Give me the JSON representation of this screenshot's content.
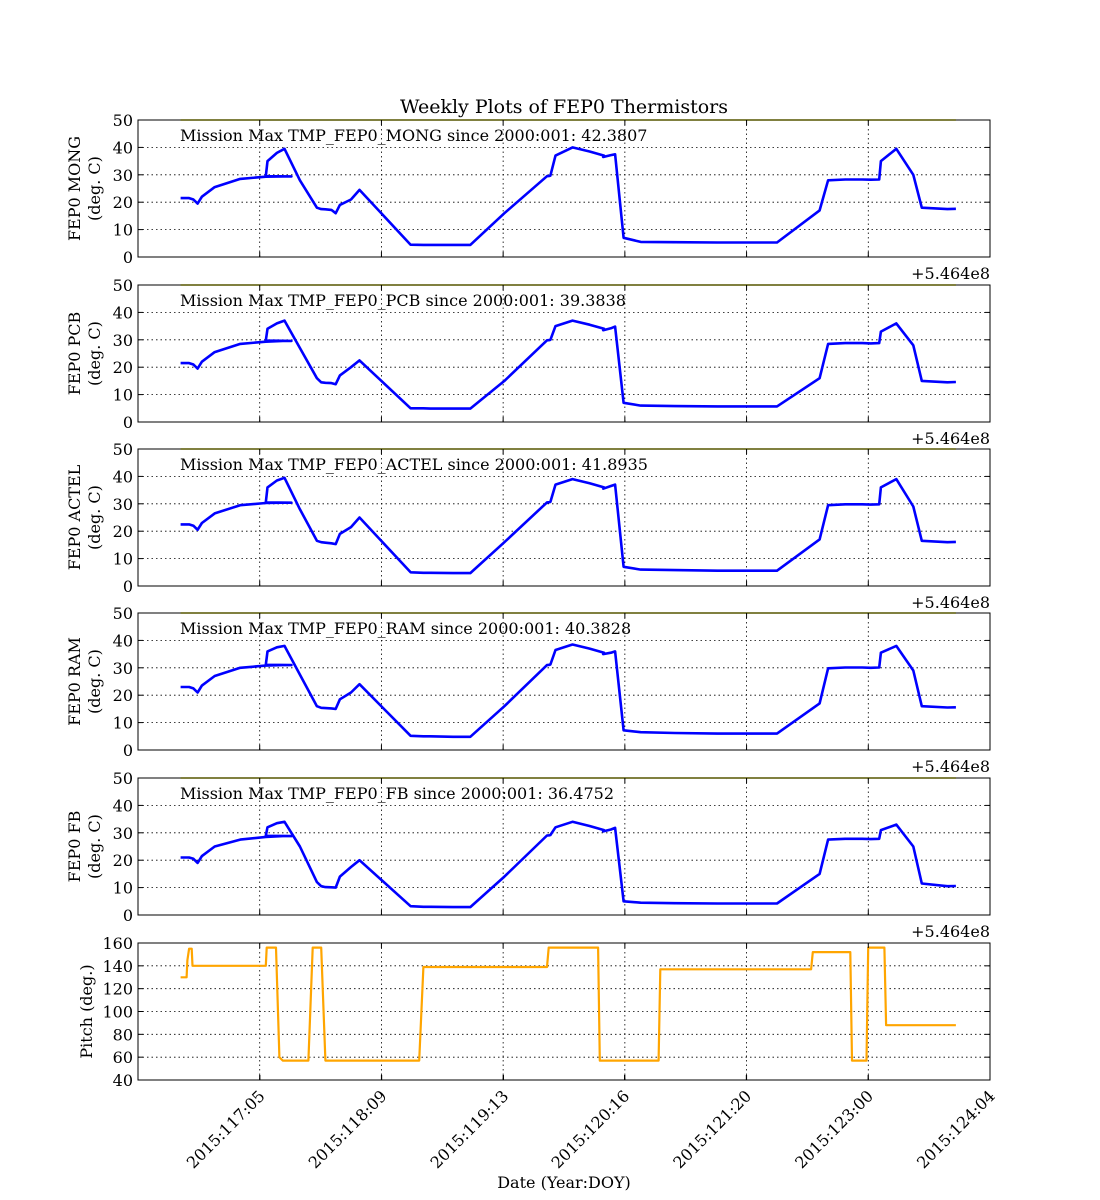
{
  "figure": {
    "title": "Weekly Plots of FEP0 Thermistors",
    "xlabel": "Date (Year:DOY)",
    "offset_label": "+5.464e8",
    "colors": {
      "thermistor": "#0000ff",
      "pitch": "#ffa500",
      "limit": "#ffff00",
      "grid": "#000000"
    }
  },
  "chart_data": [
    {
      "type": "line",
      "ylabel": [
        "FEP0 MONG",
        "(deg. C)"
      ],
      "annotation": "Mission Max TMP_FEP0_MONG since 2000:001: 42.3807",
      "ylim": [
        0,
        50
      ],
      "yticks": [
        0,
        10,
        20,
        30,
        40,
        50
      ],
      "xlim": [
        0,
        1.0
      ],
      "offset_label": "+5.464e8",
      "limit_line": 50,
      "series": [
        {
          "x": [
            0.05,
            0.06,
            0.065,
            0.07,
            0.075,
            0.09,
            0.12,
            0.15,
            0.17,
            0.18,
            0.15,
            0.152,
            0.163,
            0.172,
            0.19,
            0.21,
            0.215,
            0.22,
            0.227,
            0.232,
            0.237,
            0.25,
            0.26,
            0.32,
            0.335,
            0.343,
            0.37,
            0.39,
            0.43,
            0.48,
            0.483,
            0.484,
            0.49,
            0.51,
            0.53,
            0.547,
            0.546,
            0.555,
            0.56,
            0.57,
            0.59,
            0.63,
            0.68,
            0.75,
            0.8,
            0.81,
            0.83,
            0.85,
            0.86,
            0.87,
            0.872,
            0.89,
            0.91,
            0.92,
            0.95,
            0.96
          ],
          "y": [
            21.5,
            21.5,
            21,
            19.5,
            22,
            25.5,
            28.5,
            29.3,
            29.4,
            29.4,
            29.5,
            35,
            38,
            39.5,
            28,
            18,
            17.5,
            17.4,
            17.2,
            16,
            19,
            21,
            24.5,
            4.5,
            4.4,
            4.4,
            4.4,
            4.4,
            16,
            29.5,
            29.6,
            29.7,
            37,
            40,
            38.5,
            37,
            36.5,
            37.2,
            37.5,
            7,
            5.5,
            5.4,
            5.3,
            5.3,
            17,
            28,
            28.3,
            28.3,
            28.2,
            28.3,
            35,
            39.5,
            30,
            18,
            17.5,
            17.6
          ]
        }
      ]
    },
    {
      "type": "line",
      "ylabel": [
        "FEP0 PCB",
        "(deg. C)"
      ],
      "annotation": "Mission Max TMP_FEP0_PCB since 2000:001: 39.3838",
      "ylim": [
        0,
        50
      ],
      "yticks": [
        0,
        10,
        20,
        30,
        40,
        50
      ],
      "xlim": [
        0,
        1.0
      ],
      "offset_label": "+5.464e8",
      "limit_line": 50,
      "series": [
        {
          "x": [
            0.05,
            0.06,
            0.065,
            0.07,
            0.075,
            0.09,
            0.12,
            0.15,
            0.17,
            0.18,
            0.15,
            0.152,
            0.163,
            0.172,
            0.19,
            0.21,
            0.215,
            0.22,
            0.227,
            0.232,
            0.237,
            0.25,
            0.26,
            0.32,
            0.335,
            0.343,
            0.37,
            0.39,
            0.43,
            0.48,
            0.483,
            0.484,
            0.49,
            0.51,
            0.53,
            0.547,
            0.546,
            0.555,
            0.56,
            0.57,
            0.59,
            0.63,
            0.68,
            0.75,
            0.8,
            0.81,
            0.83,
            0.85,
            0.86,
            0.87,
            0.872,
            0.89,
            0.91,
            0.92,
            0.95,
            0.96
          ],
          "y": [
            21.5,
            21.5,
            21,
            19.5,
            22,
            25.5,
            28.5,
            29.3,
            29.6,
            29.6,
            29.7,
            34,
            36,
            37,
            27,
            16,
            14.5,
            14.3,
            14.2,
            13.8,
            17,
            20,
            22.5,
            5,
            5,
            4.9,
            4.9,
            4.9,
            15,
            29.8,
            29.9,
            30,
            35,
            37,
            35.5,
            34,
            33.5,
            34.2,
            34.8,
            7,
            6,
            5.8,
            5.7,
            5.7,
            16,
            28.5,
            28.8,
            28.8,
            28.7,
            28.8,
            33,
            36,
            28,
            15,
            14.5,
            14.6
          ]
        }
      ]
    },
    {
      "type": "line",
      "ylabel": [
        "FEP0 ACTEL",
        "(deg. C)"
      ],
      "annotation": "Mission Max TMP_FEP0_ACTEL since 2000:001: 41.8935",
      "ylim": [
        0,
        50
      ],
      "yticks": [
        0,
        10,
        20,
        30,
        40,
        50
      ],
      "xlim": [
        0,
        1.0
      ],
      "offset_label": "+5.464e8",
      "limit_line": 50,
      "series": [
        {
          "x": [
            0.05,
            0.06,
            0.065,
            0.07,
            0.075,
            0.09,
            0.12,
            0.15,
            0.17,
            0.18,
            0.15,
            0.152,
            0.163,
            0.172,
            0.19,
            0.21,
            0.215,
            0.22,
            0.227,
            0.232,
            0.237,
            0.25,
            0.26,
            0.32,
            0.335,
            0.343,
            0.37,
            0.39,
            0.43,
            0.48,
            0.483,
            0.484,
            0.49,
            0.51,
            0.53,
            0.547,
            0.546,
            0.555,
            0.56,
            0.57,
            0.59,
            0.63,
            0.68,
            0.75,
            0.8,
            0.81,
            0.83,
            0.85,
            0.86,
            0.87,
            0.872,
            0.89,
            0.91,
            0.92,
            0.95,
            0.96
          ],
          "y": [
            22.5,
            22.5,
            22,
            20.5,
            23,
            26.5,
            29.5,
            30.3,
            30.4,
            30.4,
            30.5,
            36,
            38.5,
            39.5,
            28,
            16.5,
            16,
            15.8,
            15.6,
            15.3,
            19,
            21.5,
            25,
            5,
            4.8,
            4.8,
            4.7,
            4.7,
            16,
            30.5,
            30.6,
            30.7,
            37,
            39,
            37.5,
            36,
            35.5,
            36.5,
            37,
            7,
            6,
            5.8,
            5.6,
            5.6,
            17,
            29.5,
            29.8,
            29.8,
            29.7,
            29.8,
            36,
            39,
            29,
            16.5,
            16,
            16.1
          ]
        }
      ]
    },
    {
      "type": "line",
      "ylabel": [
        "FEP0 RAM",
        "(deg. C)"
      ],
      "annotation": "Mission Max TMP_FEP0_RAM since 2000:001: 40.3828",
      "ylim": [
        0,
        50
      ],
      "yticks": [
        0,
        10,
        20,
        30,
        40,
        50
      ],
      "xlim": [
        0,
        1.0
      ],
      "offset_label": "+5.464e8",
      "limit_line": 50,
      "series": [
        {
          "x": [
            0.05,
            0.06,
            0.065,
            0.07,
            0.075,
            0.09,
            0.12,
            0.15,
            0.17,
            0.18,
            0.15,
            0.152,
            0.163,
            0.172,
            0.19,
            0.21,
            0.215,
            0.22,
            0.227,
            0.232,
            0.237,
            0.25,
            0.26,
            0.32,
            0.335,
            0.343,
            0.37,
            0.39,
            0.43,
            0.48,
            0.483,
            0.484,
            0.49,
            0.51,
            0.53,
            0.547,
            0.546,
            0.555,
            0.56,
            0.57,
            0.59,
            0.63,
            0.68,
            0.75,
            0.8,
            0.81,
            0.83,
            0.85,
            0.86,
            0.87,
            0.872,
            0.89,
            0.91,
            0.92,
            0.95,
            0.96
          ],
          "y": [
            23,
            23,
            22.5,
            21,
            23.5,
            27,
            30,
            30.8,
            31,
            31,
            31.1,
            36,
            37.5,
            38,
            27.5,
            16,
            15.4,
            15.3,
            15.2,
            15,
            18.5,
            21,
            24,
            5.2,
            5,
            5,
            4.8,
            4.8,
            16,
            31,
            31.1,
            31.2,
            36.5,
            38.5,
            37,
            35.5,
            35,
            35.5,
            36,
            7.2,
            6.5,
            6.2,
            6,
            6,
            17,
            29.8,
            30.1,
            30.1,
            30,
            30.1,
            35.5,
            38,
            29,
            16,
            15.5,
            15.6
          ]
        }
      ]
    },
    {
      "type": "line",
      "ylabel": [
        "FEP0 FB",
        "(deg. C)"
      ],
      "annotation": "Mission Max TMP_FEP0_FB since 2000:001: 36.4752",
      "ylim": [
        0,
        50
      ],
      "yticks": [
        0,
        10,
        20,
        30,
        40,
        50
      ],
      "xlim": [
        0,
        1.0
      ],
      "offset_label": "+5.464e8",
      "limit_line": 50,
      "series": [
        {
          "x": [
            0.05,
            0.06,
            0.065,
            0.07,
            0.075,
            0.09,
            0.12,
            0.15,
            0.17,
            0.18,
            0.15,
            0.152,
            0.163,
            0.172,
            0.19,
            0.21,
            0.215,
            0.22,
            0.227,
            0.232,
            0.237,
            0.25,
            0.26,
            0.32,
            0.335,
            0.343,
            0.37,
            0.39,
            0.43,
            0.48,
            0.483,
            0.484,
            0.49,
            0.51,
            0.53,
            0.547,
            0.546,
            0.555,
            0.56,
            0.57,
            0.59,
            0.63,
            0.68,
            0.75,
            0.8,
            0.81,
            0.83,
            0.85,
            0.86,
            0.87,
            0.872,
            0.89,
            0.91,
            0.92,
            0.95,
            0.96
          ],
          "y": [
            21,
            21,
            20.5,
            19,
            21.5,
            25,
            27.5,
            28.5,
            28.8,
            28.8,
            28.9,
            32,
            33.5,
            34,
            25,
            12,
            10.5,
            10.2,
            10.1,
            10,
            14,
            17.5,
            20,
            3.2,
            3,
            3,
            2.9,
            2.9,
            14,
            29,
            29.1,
            29.2,
            32,
            34,
            32.5,
            31,
            30.5,
            31.2,
            31.8,
            5,
            4.5,
            4.3,
            4.2,
            4.2,
            15,
            27.5,
            27.8,
            27.8,
            27.7,
            27.8,
            31,
            33,
            25,
            11.5,
            10.5,
            10.6
          ]
        }
      ]
    },
    {
      "type": "line",
      "ylabel": [
        "Pitch (deg.)"
      ],
      "ylim": [
        40,
        160
      ],
      "yticks": [
        40,
        60,
        80,
        100,
        120,
        140,
        160
      ],
      "xlim": [
        0,
        1.0
      ],
      "xticks": [
        {
          "pos": 0.143,
          "label": "2015:117:05"
        },
        {
          "pos": 0.286,
          "label": "2015:118:09"
        },
        {
          "pos": 0.429,
          "label": "2015:119:13"
        },
        {
          "pos": 0.571,
          "label": "2015:120:16"
        },
        {
          "pos": 0.714,
          "label": "2015:121:20"
        },
        {
          "pos": 0.857,
          "label": "2015:123:00"
        },
        {
          "pos": 1.0,
          "label": "2015:124:04"
        }
      ],
      "series": [
        {
          "x": [
            0.05,
            0.057,
            0.058,
            0.06,
            0.063,
            0.064,
            0.15,
            0.151,
            0.16,
            0.162,
            0.166,
            0.17,
            0.2,
            0.205,
            0.21,
            0.215,
            0.22,
            0.223,
            0.33,
            0.335,
            0.48,
            0.482,
            0.54,
            0.542,
            0.611,
            0.613,
            0.79,
            0.792,
            0.836,
            0.838,
            0.855,
            0.857,
            0.876,
            0.878,
            0.96
          ],
          "y": [
            130,
            130,
            145,
            155,
            155,
            140,
            140,
            156,
            156,
            156,
            60,
            57,
            57,
            156,
            156,
            156,
            57,
            57,
            57,
            139,
            139,
            156,
            156,
            57,
            57,
            137,
            137,
            152,
            152,
            57,
            57,
            156,
            156,
            88,
            88
          ]
        }
      ]
    }
  ]
}
